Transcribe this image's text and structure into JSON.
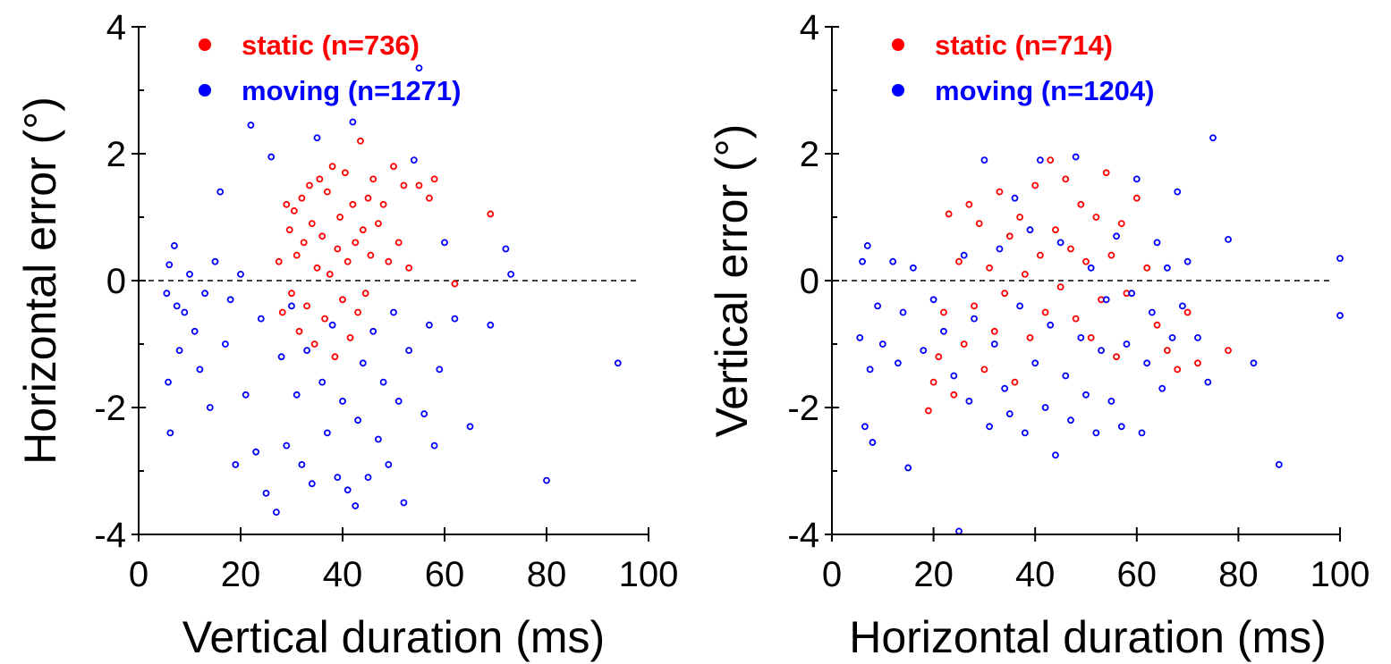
{
  "chart_data": [
    {
      "type": "scatter",
      "title": "",
      "xlabel": "Vertical duration (ms)",
      "ylabel": "Horizontal error (°)",
      "xlim": [
        0,
        100
      ],
      "ylim": [
        -4,
        4
      ],
      "xticks": [
        "0",
        "20",
        "40",
        "60",
        "80",
        "100"
      ],
      "yticks": [
        "-4",
        "-2",
        "0",
        "2",
        "4"
      ],
      "reference_line": 0,
      "legend": {
        "placement": "top-left"
      },
      "series": [
        {
          "name": "static (n=736)",
          "color": "#ff0000",
          "marker": "open-circle",
          "n": 736,
          "points": [
            [
              27.5,
              0.3
            ],
            [
              28.2,
              -0.5
            ],
            [
              29,
              1.2
            ],
            [
              29.6,
              0.8
            ],
            [
              30,
              -0.2
            ],
            [
              30.5,
              1.1
            ],
            [
              31,
              0.4
            ],
            [
              31.5,
              -0.8
            ],
            [
              32,
              1.3
            ],
            [
              32.4,
              0.6
            ],
            [
              33,
              -0.4
            ],
            [
              33.5,
              1.5
            ],
            [
              34,
              0.9
            ],
            [
              34.5,
              -1.0
            ],
            [
              35,
              0.2
            ],
            [
              35.5,
              1.6
            ],
            [
              36,
              0.7
            ],
            [
              36.5,
              -0.6
            ],
            [
              37,
              1.4
            ],
            [
              37.5,
              0.1
            ],
            [
              38,
              1.8
            ],
            [
              38.5,
              -1.2
            ],
            [
              39,
              0.5
            ],
            [
              39.5,
              1.0
            ],
            [
              40,
              -0.3
            ],
            [
              40.5,
              1.7
            ],
            [
              41,
              0.3
            ],
            [
              41.5,
              -0.9
            ],
            [
              42,
              1.2
            ],
            [
              42.5,
              0.6
            ],
            [
              43,
              -0.5
            ],
            [
              43.5,
              2.2
            ],
            [
              44,
              0.8
            ],
            [
              44.5,
              -0.2
            ],
            [
              45,
              1.3
            ],
            [
              45.5,
              0.4
            ],
            [
              46,
              1.6
            ],
            [
              47,
              0.9
            ],
            [
              48,
              1.2
            ],
            [
              49,
              0.3
            ],
            [
              50,
              1.8
            ],
            [
              51,
              0.6
            ],
            [
              52,
              1.5
            ],
            [
              53,
              0.2
            ],
            [
              55,
              1.5
            ],
            [
              57,
              1.3
            ],
            [
              58,
              1.6
            ],
            [
              62,
              -0.05
            ],
            [
              69,
              1.05
            ]
          ]
        },
        {
          "name": "moving (n=1271)",
          "color": "#0000ff",
          "marker": "open-circle",
          "n": 1271,
          "points": [
            [
              5.5,
              -0.2
            ],
            [
              5.8,
              -1.6
            ],
            [
              6,
              0.25
            ],
            [
              6.2,
              -2.4
            ],
            [
              7,
              0.55
            ],
            [
              7.5,
              -0.4
            ],
            [
              8,
              -1.1
            ],
            [
              9,
              -0.5
            ],
            [
              10,
              0.1
            ],
            [
              11,
              -0.8
            ],
            [
              12,
              -1.4
            ],
            [
              13,
              -0.2
            ],
            [
              14,
              -2.0
            ],
            [
              15,
              0.3
            ],
            [
              16,
              1.4
            ],
            [
              17,
              -1.0
            ],
            [
              18,
              -0.3
            ],
            [
              19,
              -2.9
            ],
            [
              20,
              0.1
            ],
            [
              21,
              -1.8
            ],
            [
              22,
              2.45
            ],
            [
              23,
              -2.7
            ],
            [
              24,
              -0.6
            ],
            [
              25,
              -3.35
            ],
            [
              26,
              1.95
            ],
            [
              27,
              -3.65
            ],
            [
              28,
              -1.2
            ],
            [
              29,
              -2.6
            ],
            [
              30,
              -0.4
            ],
            [
              31,
              -1.8
            ],
            [
              32,
              -2.9
            ],
            [
              33,
              -1.1
            ],
            [
              34,
              -3.2
            ],
            [
              35,
              2.25
            ],
            [
              36,
              -1.6
            ],
            [
              37,
              -2.4
            ],
            [
              38,
              -0.7
            ],
            [
              39,
              -3.1
            ],
            [
              40,
              -1.9
            ],
            [
              41,
              -3.3
            ],
            [
              42,
              2.5
            ],
            [
              42.5,
              -3.55
            ],
            [
              43,
              -2.2
            ],
            [
              44,
              -1.3
            ],
            [
              45,
              -3.1
            ],
            [
              46,
              -0.8
            ],
            [
              47,
              -2.5
            ],
            [
              48,
              -1.6
            ],
            [
              49,
              -2.9
            ],
            [
              50,
              -0.5
            ],
            [
              51,
              -1.9
            ],
            [
              52,
              -3.5
            ],
            [
              53,
              -1.1
            ],
            [
              54,
              1.9
            ],
            [
              55,
              3.35
            ],
            [
              56,
              -2.1
            ],
            [
              57,
              -0.7
            ],
            [
              58,
              -2.6
            ],
            [
              59,
              -1.4
            ],
            [
              60,
              0.6
            ],
            [
              62,
              -0.6
            ],
            [
              65,
              -2.3
            ],
            [
              69,
              -0.7
            ],
            [
              72,
              0.5
            ],
            [
              73,
              0.1
            ],
            [
              80,
              -3.15
            ],
            [
              94,
              -1.3
            ]
          ]
        }
      ]
    },
    {
      "type": "scatter",
      "title": "",
      "xlabel": "Horizontal duration (ms)",
      "ylabel": "Vertical error (°)",
      "xlim": [
        0,
        100
      ],
      "ylim": [
        -4,
        4
      ],
      "xticks": [
        "0",
        "20",
        "40",
        "60",
        "80",
        "100"
      ],
      "yticks": [
        "-4",
        "-2",
        "0",
        "2",
        "4"
      ],
      "reference_line": 0,
      "legend": {
        "placement": "top-left"
      },
      "series": [
        {
          "name": "static (n=714)",
          "color": "#ff0000",
          "marker": "open-circle",
          "n": 714,
          "points": [
            [
              19,
              -2.05
            ],
            [
              20,
              -1.6
            ],
            [
              21,
              -1.2
            ],
            [
              22,
              -0.5
            ],
            [
              23,
              1.05
            ],
            [
              24,
              -1.8
            ],
            [
              25,
              0.3
            ],
            [
              26,
              -1.0
            ],
            [
              27,
              1.2
            ],
            [
              28,
              -0.4
            ],
            [
              29,
              0.9
            ],
            [
              30,
              -1.4
            ],
            [
              31,
              0.2
            ],
            [
              32,
              -0.8
            ],
            [
              33,
              1.4
            ],
            [
              34,
              -0.2
            ],
            [
              35,
              0.7
            ],
            [
              36,
              -1.6
            ],
            [
              37,
              1.0
            ],
            [
              38,
              0.1
            ],
            [
              39,
              -0.9
            ],
            [
              40,
              1.5
            ],
            [
              41,
              0.4
            ],
            [
              42,
              -0.5
            ],
            [
              43,
              1.9
            ],
            [
              44,
              0.8
            ],
            [
              45,
              -0.1
            ],
            [
              46,
              1.6
            ],
            [
              47,
              0.5
            ],
            [
              48,
              -0.6
            ],
            [
              49,
              1.2
            ],
            [
              50,
              0.3
            ],
            [
              51,
              -0.9
            ],
            [
              52,
              1.0
            ],
            [
              53,
              -0.3
            ],
            [
              54,
              1.7
            ],
            [
              55,
              0.4
            ],
            [
              56,
              -1.2
            ],
            [
              57,
              0.9
            ],
            [
              58,
              -0.2
            ],
            [
              60,
              1.3
            ],
            [
              62,
              0.2
            ],
            [
              64,
              -0.7
            ],
            [
              66,
              -1.1
            ],
            [
              68,
              -1.4
            ],
            [
              70,
              -0.5
            ],
            [
              72,
              -1.3
            ],
            [
              78,
              -1.1
            ]
          ]
        },
        {
          "name": "moving (n=1204)",
          "color": "#0000ff",
          "marker": "open-circle",
          "n": 1204,
          "points": [
            [
              5.5,
              -0.9
            ],
            [
              6,
              0.3
            ],
            [
              6.5,
              -2.3
            ],
            [
              7,
              0.55
            ],
            [
              7.5,
              -1.4
            ],
            [
              8,
              -2.55
            ],
            [
              9,
              -0.4
            ],
            [
              10,
              -1.0
            ],
            [
              12,
              0.3
            ],
            [
              13,
              -1.3
            ],
            [
              14,
              -0.5
            ],
            [
              15,
              -2.95
            ],
            [
              16,
              0.2
            ],
            [
              18,
              -1.1
            ],
            [
              20,
              -0.3
            ],
            [
              22,
              -0.8
            ],
            [
              24,
              -1.5
            ],
            [
              25,
              -3.95
            ],
            [
              26,
              0.4
            ],
            [
              27,
              -1.9
            ],
            [
              28,
              -0.6
            ],
            [
              30,
              1.9
            ],
            [
              31,
              -2.3
            ],
            [
              32,
              -1.0
            ],
            [
              33,
              0.5
            ],
            [
              34,
              -1.7
            ],
            [
              35,
              -2.1
            ],
            [
              36,
              1.3
            ],
            [
              37,
              -0.4
            ],
            [
              38,
              -2.4
            ],
            [
              39,
              0.8
            ],
            [
              40,
              -1.3
            ],
            [
              41,
              1.9
            ],
            [
              42,
              -2.0
            ],
            [
              43,
              -0.7
            ],
            [
              44,
              -2.75
            ],
            [
              45,
              0.6
            ],
            [
              46,
              -1.5
            ],
            [
              47,
              -2.2
            ],
            [
              48,
              1.95
            ],
            [
              49,
              -0.9
            ],
            [
              50,
              -1.8
            ],
            [
              51,
              0.2
            ],
            [
              52,
              -2.4
            ],
            [
              53,
              -1.1
            ],
            [
              54,
              -0.3
            ],
            [
              55,
              -1.9
            ],
            [
              56,
              0.7
            ],
            [
              57,
              -2.3
            ],
            [
              58,
              -1.0
            ],
            [
              59,
              -0.2
            ],
            [
              60,
              1.6
            ],
            [
              61,
              -2.4
            ],
            [
              62,
              -1.3
            ],
            [
              63,
              -0.5
            ],
            [
              64,
              0.6
            ],
            [
              65,
              -1.7
            ],
            [
              66,
              0.2
            ],
            [
              67,
              -0.9
            ],
            [
              68,
              1.4
            ],
            [
              69,
              -0.4
            ],
            [
              70,
              0.3
            ],
            [
              72,
              -0.9
            ],
            [
              74,
              -1.6
            ],
            [
              75,
              2.25
            ],
            [
              78,
              0.65
            ],
            [
              83,
              -1.3
            ],
            [
              88,
              -2.9
            ],
            [
              100,
              0.35
            ],
            [
              100,
              -0.55
            ]
          ]
        }
      ]
    }
  ]
}
